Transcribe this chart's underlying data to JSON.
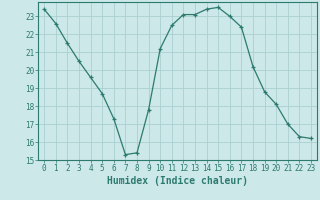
{
  "x": [
    0,
    1,
    2,
    3,
    4,
    5,
    6,
    7,
    8,
    9,
    10,
    11,
    12,
    13,
    14,
    15,
    16,
    17,
    18,
    19,
    20,
    21,
    22,
    23
  ],
  "y": [
    23.4,
    22.6,
    21.5,
    20.5,
    19.6,
    18.7,
    17.3,
    15.3,
    15.4,
    17.8,
    21.2,
    22.5,
    23.1,
    23.1,
    23.4,
    23.5,
    23.0,
    22.4,
    20.2,
    18.8,
    18.1,
    17.0,
    16.3,
    16.2
  ],
  "line_color": "#2d7a6e",
  "marker": "+",
  "bg_color": "#cce8e8",
  "grid_color": "#aacfcf",
  "tick_color": "#2d7a6e",
  "label_color": "#2d7a6e",
  "xlabel": "Humidex (Indice chaleur)",
  "ylim": [
    15,
    23.8
  ],
  "xlim": [
    -0.5,
    23.5
  ],
  "yticks": [
    15,
    16,
    17,
    18,
    19,
    20,
    21,
    22,
    23
  ],
  "xticks": [
    0,
    1,
    2,
    3,
    4,
    5,
    6,
    7,
    8,
    9,
    10,
    11,
    12,
    13,
    14,
    15,
    16,
    17,
    18,
    19,
    20,
    21,
    22,
    23
  ],
  "axis_fontsize": 6.5,
  "tick_fontsize": 5.5,
  "xlabel_fontsize": 7.0
}
